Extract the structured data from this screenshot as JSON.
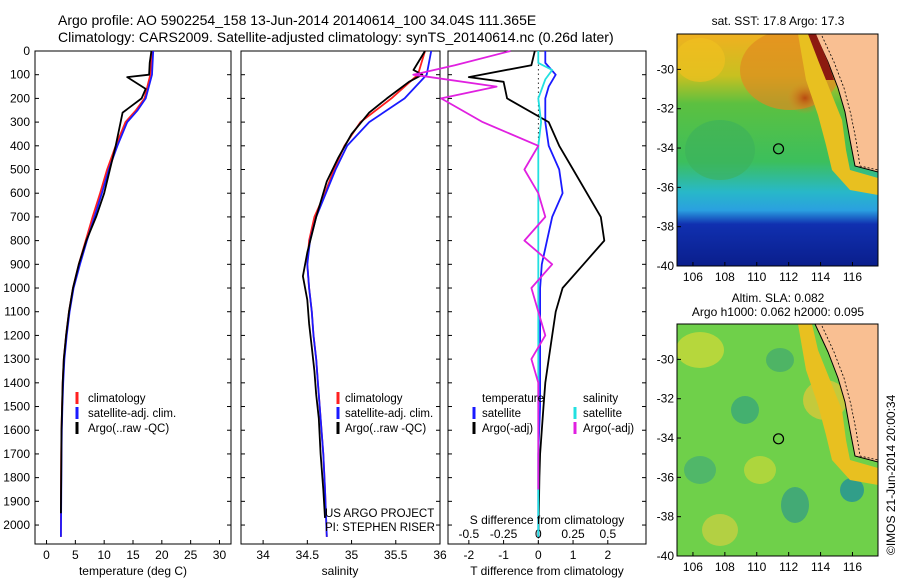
{
  "header": {
    "line1": "Argo profile: AO 5902254_158 13-Jun-2014 20140614_100 34.04S 111.365E",
    "line2": "Climatology: CARS2009. Satellite-adjusted climatology: synTS_20140614.nc (0.26d later)"
  },
  "colors": {
    "climatology": "#ff2020",
    "satellite": "#1a1aff",
    "argo": "#000000",
    "sal_sat": "#22e0e0",
    "sal_argo": "#e020e0",
    "land": "#f9bf92"
  },
  "depth_ticks": [
    0,
    100,
    200,
    300,
    400,
    500,
    600,
    700,
    800,
    900,
    1000,
    1100,
    1200,
    1300,
    1400,
    1500,
    1600,
    1700,
    1800,
    1900,
    2000
  ],
  "chart_data": [
    {
      "type": "line",
      "xlabel": "temperature (deg C)",
      "xlim": [
        -2,
        32
      ],
      "ylim": [
        0,
        2080
      ],
      "xticks": [
        0,
        5,
        10,
        15,
        20,
        25,
        30
      ],
      "legend": [
        "climatology",
        "satellite-adj. clim.",
        "Argo(..raw -QC)"
      ],
      "series": [
        {
          "name": "climatology",
          "x": [
            18.3,
            18.0,
            17.0,
            15.5,
            13.7,
            12.0,
            10.5,
            9.3,
            8.0,
            6.8,
            5.6,
            4.6,
            3.9,
            3.4,
            3.0,
            2.8,
            2.7,
            2.6,
            2.55,
            2.5,
            2.5
          ],
          "y": [
            0,
            100,
            200,
            250,
            300,
            400,
            500,
            600,
            700,
            800,
            900,
            1000,
            1100,
            1200,
            1300,
            1400,
            1500,
            1600,
            1700,
            1900,
            2050
          ]
        },
        {
          "name": "satellite-adj. clim.",
          "x": [
            18.5,
            18.3,
            17.2,
            15.8,
            14.0,
            12.3,
            10.8,
            9.6,
            8.3,
            7.0,
            5.8,
            4.7,
            4.0,
            3.5,
            3.1,
            2.9,
            2.75,
            2.65,
            2.6,
            2.55,
            2.5
          ],
          "y": [
            0,
            100,
            200,
            250,
            300,
            400,
            500,
            600,
            700,
            800,
            900,
            1000,
            1100,
            1200,
            1300,
            1400,
            1500,
            1600,
            1700,
            1900,
            2050
          ]
        },
        {
          "name": "Argo(..raw -QC)",
          "x": [
            18.2,
            17.9,
            17.8,
            14.0,
            17.2,
            16.5,
            13.2,
            12.0,
            11.0,
            10.0,
            8.6,
            6.9,
            5.6,
            4.6,
            3.9,
            3.4,
            3.0,
            2.8,
            2.7,
            2.6,
            2.55,
            2.5
          ],
          "y": [
            0,
            50,
            100,
            110,
            160,
            200,
            260,
            400,
            500,
            600,
            700,
            800,
            900,
            1000,
            1100,
            1200,
            1300,
            1400,
            1500,
            1600,
            1800,
            1950
          ]
        }
      ],
      "annotations": []
    },
    {
      "type": "line",
      "xlabel": "salinity",
      "xlim": [
        33.75,
        36.0
      ],
      "ylim": [
        0,
        2080
      ],
      "xticks": [
        34,
        34.5,
        35,
        35.5,
        36
      ],
      "xtick_labels": [
        "34",
        "34.5",
        "35",
        "35.5",
        "36"
      ],
      "legend": [
        "climatology",
        "satellite-adj. clim.",
        "Argo(..raw -QC)"
      ],
      "series": [
        {
          "name": "climatology",
          "x": [
            35.83,
            35.75,
            35.45,
            35.1,
            34.92,
            34.8,
            34.7,
            34.58,
            34.52,
            34.5,
            34.52,
            34.55,
            34.57,
            34.6,
            34.62,
            34.64,
            34.66,
            34.68,
            34.7,
            34.72
          ],
          "y": [
            0,
            100,
            200,
            300,
            400,
            500,
            600,
            700,
            800,
            900,
            1000,
            1100,
            1200,
            1300,
            1400,
            1500,
            1600,
            1700,
            1850,
            2050
          ]
        },
        {
          "name": "satellite-adj. clim.",
          "x": [
            35.9,
            35.85,
            35.6,
            35.2,
            34.95,
            34.82,
            34.71,
            34.6,
            34.53,
            34.5,
            34.52,
            34.55,
            34.57,
            34.6,
            34.62,
            34.64,
            34.66,
            34.68,
            34.7,
            34.72
          ],
          "y": [
            0,
            100,
            200,
            300,
            400,
            500,
            600,
            700,
            800,
            900,
            1000,
            1100,
            1200,
            1300,
            1400,
            1500,
            1600,
            1700,
            1850,
            2050
          ]
        },
        {
          "name": "Argo(..raw -QC)",
          "x": [
            35.83,
            35.7,
            35.8,
            35.65,
            35.4,
            35.2,
            35.0,
            34.85,
            34.72,
            34.6,
            34.5,
            34.45,
            34.5,
            34.52,
            34.55,
            34.58,
            34.6,
            34.63,
            34.65,
            34.68,
            34.7
          ],
          "y": [
            0,
            80,
            100,
            130,
            200,
            260,
            350,
            450,
            550,
            700,
            850,
            950,
            1050,
            1150,
            1250,
            1350,
            1450,
            1550,
            1700,
            1850,
            1970
          ]
        }
      ],
      "annotations": [
        "US ARGO PROJECT",
        "PI: STEPHEN RISER"
      ]
    },
    {
      "type": "line",
      "xlabel": "T difference from climatology",
      "x2label": "S difference from climatology",
      "xlim": [
        -2.6,
        3.1
      ],
      "ylim": [
        0,
        2080
      ],
      "xticks": [
        -2,
        -1,
        0,
        1,
        2
      ],
      "x2ticks": [
        -0.5,
        -0.25,
        0,
        0.25,
        0.5
      ],
      "x2tick_labels": [
        "-0.5",
        "-0.25",
        "0",
        "0.25",
        "0.5"
      ],
      "legend": [
        "temperature",
        "satellite",
        "Argo(-adj)",
        "salinity",
        "satellite",
        "Argo(-adj)"
      ],
      "series": [
        {
          "name": "T satellite",
          "x": [
            0.2,
            0.2,
            0.5,
            0.3,
            0.2,
            0.2,
            0.3,
            0.6,
            0.7,
            0.4,
            0.25,
            0.1,
            0.05,
            0.05,
            0.05,
            0.05,
            0.05,
            0.05,
            0.0,
            0.0,
            0.0
          ],
          "y": [
            0,
            50,
            100,
            150,
            200,
            300,
            400,
            500,
            600,
            700,
            800,
            900,
            1000,
            1100,
            1200,
            1300,
            1400,
            1500,
            1700,
            1900,
            2050
          ]
        },
        {
          "name": "T Argo(-adj)",
          "x": [
            -0.1,
            -0.2,
            -2.0,
            -1.0,
            -0.9,
            0.3,
            0.6,
            1.0,
            1.8,
            1.9,
            1.3,
            0.7,
            0.5,
            0.4,
            0.3,
            0.2,
            0.15,
            0.1,
            0.05,
            0.03,
            0.02,
            0.0
          ],
          "y": [
            0,
            60,
            110,
            130,
            200,
            300,
            400,
            500,
            700,
            800,
            900,
            1000,
            1100,
            1200,
            1300,
            1400,
            1500,
            1600,
            1700,
            1800,
            1900,
            2050
          ]
        },
        {
          "name": "S satellite",
          "x": [
            0.0,
            0.0,
            0.1,
            0.05,
            0.0,
            0.02,
            0.0,
            0.0,
            0.0,
            0.0,
            0.0,
            0.0,
            0.0,
            0.0,
            0.0,
            0.0
          ],
          "y": [
            0,
            50,
            80,
            120,
            200,
            300,
            400,
            600,
            800,
            900,
            1100,
            1300,
            1500,
            1700,
            1900,
            2050
          ]
        },
        {
          "name": "S Argo(-adj)",
          "x": [
            -0.2,
            -0.6,
            -0.9,
            -0.3,
            -0.7,
            -0.4,
            0.0,
            -0.1,
            0.0,
            0.05,
            -0.1,
            0.1,
            -0.05,
            0.0,
            0.05,
            -0.05,
            0.0,
            0.0,
            0.0
          ],
          "y": [
            0,
            60,
            100,
            150,
            200,
            300,
            400,
            500,
            600,
            700,
            800,
            900,
            1000,
            1100,
            1200,
            1300,
            1400,
            1600,
            1850
          ]
        }
      ]
    },
    {
      "type": "heatmap",
      "title": "sat. SST: 17.8 Argo: 17.3",
      "xlim": [
        105,
        117.6
      ],
      "ylim": [
        -40,
        -28.2
      ],
      "xticks": [
        106,
        108,
        110,
        112,
        114,
        116
      ],
      "yticks": [
        -30,
        -32,
        -34,
        -36,
        -38,
        -40
      ],
      "marker": [
        111.365,
        -34.04
      ]
    },
    {
      "type": "heatmap",
      "title": "Altim. SLA: 0.082",
      "subtitle": "Argo h1000: 0.062 h2000: 0.095",
      "xlim": [
        105,
        117.6
      ],
      "ylim": [
        -40,
        -28.2
      ],
      "xticks": [
        106,
        108,
        110,
        112,
        114,
        116
      ],
      "yticks": [
        -30,
        -32,
        -34,
        -36,
        -38,
        -40
      ],
      "marker": [
        111.365,
        -34.04
      ]
    }
  ],
  "stamp": "©IMOS 21-Jun-2014 20:00:34"
}
